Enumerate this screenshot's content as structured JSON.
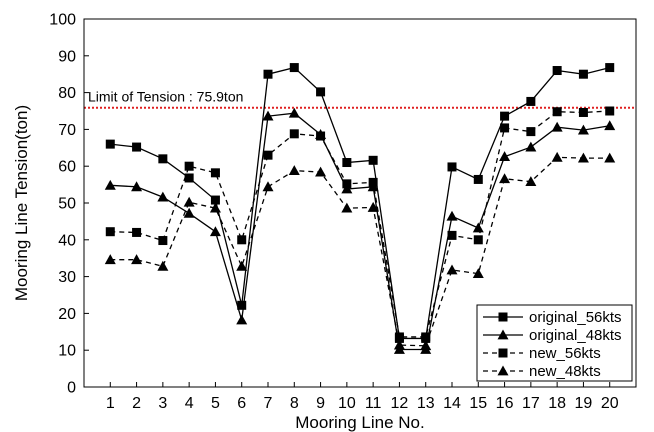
{
  "chart_data": {
    "type": "line",
    "xlabel": "Mooring Line No.",
    "ylabel": "Mooring Line Tension(ton)",
    "ylim": [
      0,
      100
    ],
    "xlim": [
      0,
      21
    ],
    "yticks": [
      0,
      10,
      20,
      30,
      40,
      50,
      60,
      70,
      80,
      90,
      100
    ],
    "x": [
      1,
      2,
      3,
      4,
      5,
      6,
      7,
      8,
      9,
      10,
      11,
      12,
      13,
      14,
      15,
      16,
      17,
      18,
      19,
      20
    ],
    "grid": false,
    "legend_position": "bottom-right",
    "series": [
      {
        "name": "original_56kts",
        "marker": "square",
        "line_style": "solid",
        "values": [
          66,
          65.2,
          62,
          56.8,
          50.8,
          22.2,
          85,
          86.8,
          80.2,
          61,
          61.6,
          13.2,
          13.2,
          59.8,
          56.4,
          73.6,
          77.6,
          86,
          85,
          86.8
        ]
      },
      {
        "name": "original_48kts",
        "marker": "triangle",
        "line_style": "solid",
        "values": [
          54.8,
          54.4,
          51.6,
          47.2,
          42.2,
          18.2,
          73.6,
          74.4,
          68.6,
          53.8,
          54.4,
          10.2,
          10.2,
          46.4,
          43.2,
          62.6,
          65.2,
          70.6,
          69.8,
          71
        ]
      },
      {
        "name": "new_56kts",
        "marker": "square",
        "line_style": "dashed",
        "values": [
          42.2,
          42,
          39.8,
          60,
          58.2,
          40,
          63,
          68.8,
          68.2,
          55.2,
          55.6,
          13.6,
          13.6,
          41.2,
          40,
          70.4,
          69.4,
          74.8,
          74.6,
          75
        ]
      },
      {
        "name": "new_48kts",
        "marker": "triangle",
        "line_style": "dashed",
        "values": [
          34.6,
          34.6,
          32.8,
          50.2,
          48.6,
          32.8,
          54.4,
          58.8,
          58.4,
          48.6,
          48.8,
          11.4,
          11.2,
          31.8,
          30.8,
          56.6,
          55.8,
          62.4,
          62.2,
          62.2
        ]
      }
    ],
    "reference_line": {
      "label": "Limit of Tension : 75.9ton",
      "value": 75.9,
      "color": "#e02020"
    },
    "colors": {
      "series": "#000000",
      "reference": "#e02020"
    }
  }
}
